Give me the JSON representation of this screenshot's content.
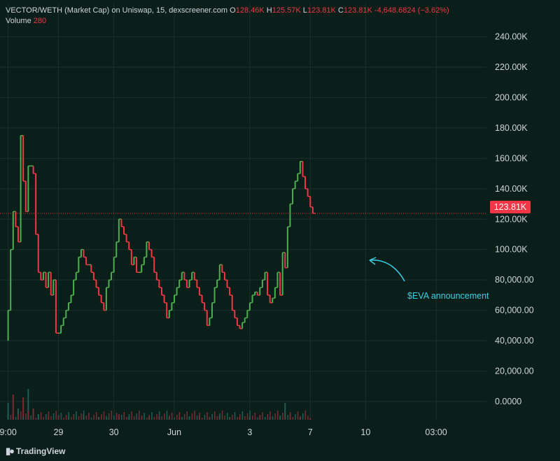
{
  "legend": {
    "title": "VECTOR/WETH (Market Cap) on Uniswap, 15, dexscreener.com",
    "o_label": "O",
    "o_value": "128.46K",
    "h_label": "H",
    "h_value": "125.57K",
    "l_label": "L",
    "l_value": "123.81K",
    "c_label": "C",
    "c_value": "123.81K",
    "change": "-4,648.6824 (−3.62%)",
    "volume_label": "Volume",
    "volume_value": "280"
  },
  "price_badge": "123.81K",
  "annotation": "$EVA announcement",
  "brand": "TradingView",
  "colors": {
    "up": "#4caf50",
    "down": "#f23645",
    "background": "#0b1f1a",
    "annotation": "#3ad1e6",
    "volume_up": "#1d5e55",
    "volume_down": "#7a2a33"
  },
  "chart_data": {
    "type": "line",
    "y_tick_labels": [
      "240.00K",
      "220.00K",
      "200.00K",
      "180.00K",
      "160.00K",
      "140.00K",
      "120.00K",
      "100.00K",
      "80,000.00",
      "60,000.00",
      "40,000.00",
      "20,000.00",
      "0.0000"
    ],
    "y_tick_values": [
      240000,
      220000,
      200000,
      180000,
      160000,
      140000,
      120000,
      100000,
      80000,
      60000,
      40000,
      20000,
      0
    ],
    "ylim": [
      -12000,
      255000
    ],
    "x_tick_labels": [
      "9:00",
      "29",
      "30",
      "Jun",
      "3",
      "7",
      "10",
      "03:00"
    ],
    "x_tick_values": [
      0,
      10,
      21,
      33,
      48,
      60,
      71,
      85
    ],
    "x_range": [
      -0.5,
      95
    ],
    "last_price": 123810,
    "price_path": [
      [
        0,
        40000
      ],
      [
        0.5,
        60000
      ],
      [
        1,
        100000
      ],
      [
        1.5,
        125000
      ],
      [
        2,
        115000
      ],
      [
        2.5,
        105000
      ],
      [
        3,
        175000
      ],
      [
        3.5,
        145000
      ],
      [
        4,
        125000
      ],
      [
        4.5,
        155000
      ],
      [
        5,
        155000
      ],
      [
        5.5,
        150000
      ],
      [
        6,
        110000
      ],
      [
        6.5,
        85000
      ],
      [
        7,
        80000
      ],
      [
        7.5,
        85000
      ],
      [
        8,
        75000
      ],
      [
        8.5,
        85000
      ],
      [
        9,
        70000
      ],
      [
        9.5,
        80000
      ],
      [
        10,
        45000
      ],
      [
        10.5,
        45000
      ],
      [
        11,
        50000
      ],
      [
        11.5,
        55000
      ],
      [
        12,
        60000
      ],
      [
        12.5,
        65000
      ],
      [
        13,
        70000
      ],
      [
        13.5,
        80000
      ],
      [
        14,
        85000
      ],
      [
        14.5,
        95000
      ],
      [
        15,
        100000
      ],
      [
        15.5,
        95000
      ],
      [
        16,
        90000
      ],
      [
        16.5,
        90000
      ],
      [
        17,
        85000
      ],
      [
        17.5,
        80000
      ],
      [
        18,
        75000
      ],
      [
        18.5,
        70000
      ],
      [
        19,
        65000
      ],
      [
        19.5,
        60000
      ],
      [
        20,
        75000
      ],
      [
        20.5,
        80000
      ],
      [
        21,
        85000
      ],
      [
        21.5,
        95000
      ],
      [
        22,
        105000
      ],
      [
        22.5,
        120000
      ],
      [
        23,
        115000
      ],
      [
        23.5,
        110000
      ],
      [
        24,
        105000
      ],
      [
        24.5,
        100000
      ],
      [
        25,
        90000
      ],
      [
        25.5,
        95000
      ],
      [
        26,
        85000
      ],
      [
        26.5,
        85000
      ],
      [
        27,
        90000
      ],
      [
        27.5,
        95000
      ],
      [
        28,
        105000
      ],
      [
        28.5,
        100000
      ],
      [
        29,
        95000
      ],
      [
        29.5,
        85000
      ],
      [
        30,
        80000
      ],
      [
        30.5,
        75000
      ],
      [
        31,
        70000
      ],
      [
        31.5,
        65000
      ],
      [
        32,
        55000
      ],
      [
        32.5,
        60000
      ],
      [
        33,
        65000
      ],
      [
        33.5,
        70000
      ],
      [
        34,
        75000
      ],
      [
        34.5,
        80000
      ],
      [
        35,
        85000
      ],
      [
        35.5,
        80000
      ],
      [
        36,
        75000
      ],
      [
        36.5,
        80000
      ],
      [
        37,
        85000
      ],
      [
        37.5,
        80000
      ],
      [
        38,
        75000
      ],
      [
        38.5,
        70000
      ],
      [
        39,
        65000
      ],
      [
        39.5,
        60000
      ],
      [
        40,
        50000
      ],
      [
        40.5,
        55000
      ],
      [
        41,
        65000
      ],
      [
        41.5,
        75000
      ],
      [
        42,
        80000
      ],
      [
        42.5,
        90000
      ],
      [
        43,
        85000
      ],
      [
        43.5,
        80000
      ],
      [
        44,
        75000
      ],
      [
        44.5,
        70000
      ],
      [
        45,
        60000
      ],
      [
        45.5,
        55000
      ],
      [
        46,
        50000
      ],
      [
        46.5,
        48000
      ],
      [
        47,
        52000
      ],
      [
        47.5,
        55000
      ],
      [
        48,
        60000
      ],
      [
        48.5,
        65000
      ],
      [
        49,
        70000
      ],
      [
        49.5,
        72000
      ],
      [
        50,
        70000
      ],
      [
        50.5,
        75000
      ],
      [
        51,
        80000
      ],
      [
        51.5,
        85000
      ],
      [
        52,
        70000
      ],
      [
        52.5,
        65000
      ],
      [
        53,
        68000
      ],
      [
        53.5,
        75000
      ],
      [
        54,
        85000
      ],
      [
        54.5,
        70000
      ],
      [
        55,
        98000
      ],
      [
        55.5,
        88000
      ],
      [
        56,
        115000
      ],
      [
        56.5,
        130000
      ],
      [
        57,
        140000
      ],
      [
        57.5,
        145000
      ],
      [
        58,
        150000
      ],
      [
        58.5,
        158000
      ],
      [
        59,
        148000
      ],
      [
        59.5,
        140000
      ],
      [
        60,
        135000
      ],
      [
        60.5,
        128000
      ],
      [
        61,
        123810
      ]
    ],
    "volume_spikes": [
      [
        0,
        0.3
      ],
      [
        1,
        0.45
      ],
      [
        2,
        0.2
      ],
      [
        3,
        0.4
      ],
      [
        4,
        0.55
      ],
      [
        5,
        0.2
      ],
      [
        6,
        0.1
      ],
      [
        8,
        0.05
      ],
      [
        10,
        0.08
      ],
      [
        12,
        0.06
      ],
      [
        15,
        0.1
      ],
      [
        18,
        0.05
      ],
      [
        20,
        0.04
      ],
      [
        22,
        0.1
      ],
      [
        24,
        0.06
      ],
      [
        26,
        0.04
      ],
      [
        28,
        0.05
      ],
      [
        30,
        0.06
      ],
      [
        32,
        0.05
      ],
      [
        34,
        0.04
      ],
      [
        36,
        0.05
      ],
      [
        38,
        0.06
      ],
      [
        40,
        0.04
      ],
      [
        42,
        0.07
      ],
      [
        44,
        0.05
      ],
      [
        46,
        0.04
      ],
      [
        48,
        0.05
      ],
      [
        50,
        0.06
      ],
      [
        52,
        0.05
      ],
      [
        54,
        0.06
      ],
      [
        55,
        0.3
      ],
      [
        56,
        0.1
      ],
      [
        58,
        0.04
      ],
      [
        60,
        0.03
      ]
    ]
  }
}
